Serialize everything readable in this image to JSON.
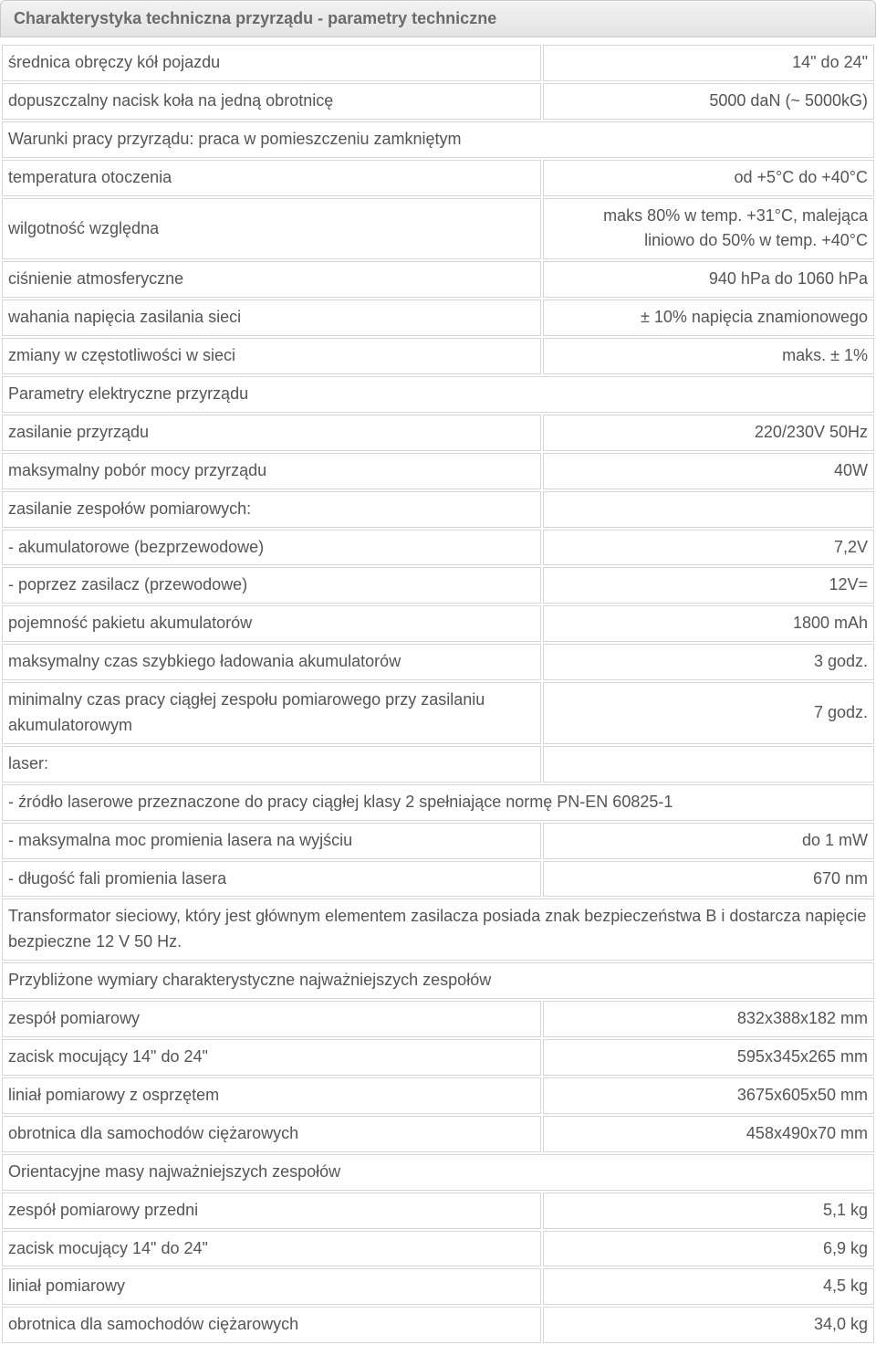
{
  "header": {
    "title": "Charakterystyka techniczna przyrządu - parametry techniczne"
  },
  "rows": [
    {
      "label": "średnica obręczy kół pojazdu",
      "value": "14\" do 24\""
    },
    {
      "label": "dopuszczalny nacisk koła na jedną obrotnicę",
      "value": "5000 daN (~ 5000kG)"
    },
    {
      "full": "Warunki pracy przyrządu: praca w pomieszczeniu zamkniętym"
    },
    {
      "label": "temperatura otoczenia",
      "value": "od +5°C do +40°C"
    },
    {
      "label": "wilgotność względna",
      "value": "maks 80% w temp. +31°C, malejąca liniowo do 50% w temp. +40°C"
    },
    {
      "label": "ciśnienie atmosferyczne",
      "value": "940 hPa do 1060 hPa"
    },
    {
      "label": "wahania napięcia zasilania sieci",
      "value": "± 10% napięcia znamionowego"
    },
    {
      "label": "zmiany w częstotliwości w sieci",
      "value": "maks. ± 1%"
    },
    {
      "full": "Parametry elektryczne przyrządu"
    },
    {
      "label": "zasilanie przyrządu",
      "value": "220/230V 50Hz"
    },
    {
      "label": "maksymalny pobór mocy przyrządu",
      "value": "40W"
    },
    {
      "label": "zasilanie zespołów pomiarowych:",
      "value": ""
    },
    {
      "label": "- akumulatorowe (bezprzewodowe)",
      "value": "7,2V"
    },
    {
      "label": "- poprzez zasilacz (przewodowe)",
      "value": "12V="
    },
    {
      "label": "pojemność pakietu akumulatorów",
      "value": "1800 mAh"
    },
    {
      "label": "maksymalny czas szybkiego ładowania akumulatorów",
      "value": "3 godz."
    },
    {
      "label": "minimalny czas pracy ciągłej zespołu pomiarowego przy zasilaniu akumulatorowym",
      "value": "7 godz."
    },
    {
      "label": "laser:",
      "value": ""
    },
    {
      "full": "- źródło laserowe przeznaczone do pracy ciągłej klasy 2 spełniające normę PN-EN 60825-1"
    },
    {
      "label": "- maksymalna moc promienia lasera na wyjściu",
      "value": "do 1 mW"
    },
    {
      "label": "- długość fali promienia lasera",
      "value": "670 nm"
    },
    {
      "full": "Transformator sieciowy, który jest głównym elementem zasilacza posiada znak bezpieczeństwa B i dostarcza napięcie bezpieczne 12 V 50 Hz."
    },
    {
      "full": "Przybliżone wymiary charakterystyczne najważniejszych zespołów"
    },
    {
      "label": "zespół pomiarowy",
      "value": "832x388x182 mm"
    },
    {
      "label": "zacisk mocujący 14\" do 24\"",
      "value": "595x345x265 mm"
    },
    {
      "label": "liniał pomiarowy z osprzętem",
      "value": "3675x605x50 mm"
    },
    {
      "label": "obrotnica dla samochodów ciężarowych",
      "value": "458x490x70 mm"
    },
    {
      "full": "Orientacyjne masy najważniejszych zespołów"
    },
    {
      "label": "zespół pomiarowy przedni",
      "value": "5,1 kg"
    },
    {
      "label": "zacisk mocujący 14\" do 24\"",
      "value": "6,9 kg"
    },
    {
      "label": "liniał pomiarowy",
      "value": "4,5 kg"
    },
    {
      "label": "obrotnica dla samochodów ciężarowych",
      "value": "34,0 kg"
    }
  ],
  "layout": {
    "label_col_width_pct": 62,
    "value_col_width_pct": 38
  },
  "colors": {
    "header_bg_top": "#f2f2f2",
    "header_bg_bottom": "#e3e3e3",
    "header_text": "#6a6a6a",
    "cell_border": "#d6d6d6",
    "cell_bg": "#fefefe",
    "text": "#555555"
  }
}
